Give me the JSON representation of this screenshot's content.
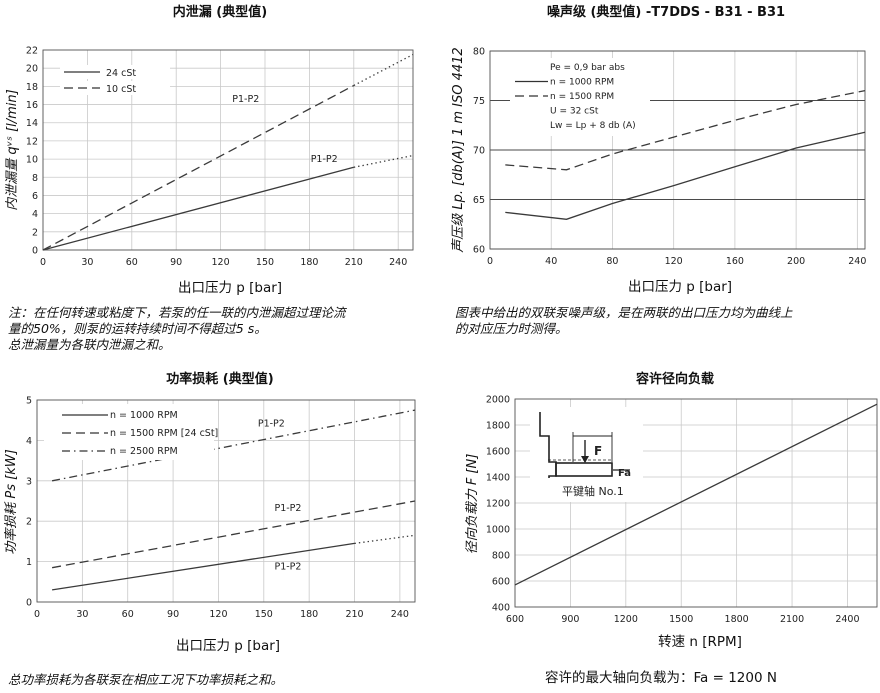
{
  "chart_data": [
    {
      "type": "line",
      "title": "内泄漏 (典型值)",
      "xlabel": "出口压力 p [bar]",
      "ylabel": "内泄漏量 qᵛˢ [l/min]",
      "xlim": [
        0,
        250
      ],
      "ylim": [
        0,
        22
      ],
      "xticks": [
        0,
        30,
        60,
        90,
        120,
        150,
        180,
        210,
        240
      ],
      "yticks": [
        0,
        2,
        4,
        6,
        8,
        10,
        12,
        14,
        16,
        18,
        20,
        22
      ],
      "grid": true,
      "legend": [
        {
          "label": "24 cSt",
          "style": "solid"
        },
        {
          "label": "10 cSt",
          "style": "dashed"
        }
      ],
      "series": [
        {
          "name": "24 cSt",
          "style": "solid",
          "x": [
            0,
            210
          ],
          "y": [
            0,
            9.1
          ]
        },
        {
          "name": "24 cSt",
          "style": "dotted",
          "x": [
            210,
            250
          ],
          "y": [
            9.1,
            10.4
          ]
        },
        {
          "name": "10 cSt",
          "style": "dashed",
          "x": [
            0,
            210
          ],
          "y": [
            0,
            18.1
          ]
        },
        {
          "name": "10 cSt",
          "style": "dotted",
          "x": [
            210,
            250
          ],
          "y": [
            18.1,
            21.5
          ]
        }
      ],
      "annotations": [
        {
          "text": "P1-P2",
          "x": 137,
          "y": 16.3
        },
        {
          "text": "P1-P2",
          "x": 190,
          "y": 9.7
        }
      ],
      "note": [
        "注：在任何转速或粘度下，若泵的任一联的内泄漏超过理论流",
        "量的50%，则泵的运转持续时间不得超过5 s。",
        "总泄漏量为各联内泄漏之和。"
      ]
    },
    {
      "type": "line",
      "title": "噪声级 (典型值) -T7DDS - B31 - B31",
      "xlabel": "出口压力 p [bar]",
      "ylabel": "声压级 Lp. [db(A)] 1 m ISO 4412",
      "xlim": [
        0,
        245
      ],
      "ylim": [
        60,
        80
      ],
      "xticks": [
        0,
        40,
        80,
        120,
        160,
        200,
        240
      ],
      "yticks": [
        60,
        65,
        70,
        75,
        80
      ],
      "grid": true,
      "legend": [
        {
          "label": "Pe  = 0,9 bar abs",
          "style": "none"
        },
        {
          "label": "n   = 1000 RPM",
          "style": "solid"
        },
        {
          "label": "n   = 1500 RPM",
          "style": "dashed"
        },
        {
          "label": "U   = 32 cSt",
          "style": "none"
        },
        {
          "label": "Lw = Lp + 8 db (A)",
          "style": "none"
        }
      ],
      "series": [
        {
          "name": "n = 1000 RPM",
          "style": "solid",
          "x": [
            10,
            50,
            80,
            120,
            160,
            200,
            245
          ],
          "y": [
            63.7,
            63.0,
            64.6,
            66.4,
            68.3,
            70.2,
            71.8
          ]
        },
        {
          "name": "n = 1500 RPM",
          "style": "dashed",
          "x": [
            10,
            50,
            80,
            120,
            160,
            200,
            245
          ],
          "y": [
            68.5,
            68.0,
            69.6,
            71.3,
            73.0,
            74.6,
            76.0
          ]
        }
      ],
      "note": [
        "图表中给出的双联泵噪声级，是在两联的出口压力均为曲线上",
        "的对应压力时测得。"
      ]
    },
    {
      "type": "line",
      "title": "功率损耗 (典型值)",
      "xlabel": "出口压力 p [bar]",
      "ylabel": "功率损耗 Ps [kW]",
      "xlim": [
        0,
        250
      ],
      "ylim": [
        0,
        5
      ],
      "xticks": [
        0,
        30,
        60,
        90,
        120,
        150,
        180,
        210,
        240
      ],
      "yticks": [
        0,
        1,
        2,
        3,
        4,
        5
      ],
      "grid": true,
      "legend": [
        {
          "label": "n = 1000 RPM",
          "style": "solid"
        },
        {
          "label": "n = 1500 RPM [24 cSt]",
          "style": "dashed"
        },
        {
          "label": "n = 2500 RPM",
          "style": "dashdot"
        }
      ],
      "series": [
        {
          "name": "n = 1000 RPM",
          "style": "solid",
          "x": [
            10,
            210
          ],
          "y": [
            0.3,
            1.45
          ]
        },
        {
          "name": "n = 1000 RPM",
          "style": "dotted",
          "x": [
            210,
            250
          ],
          "y": [
            1.45,
            1.65
          ]
        },
        {
          "name": "n = 1500 RPM [24 cSt]",
          "style": "dashed",
          "x": [
            10,
            250
          ],
          "y": [
            0.85,
            2.5
          ]
        },
        {
          "name": "n = 2500 RPM",
          "style": "dashdot",
          "x": [
            10,
            250
          ],
          "y": [
            3.0,
            4.75
          ]
        }
      ],
      "annotations": [
        {
          "text": "P1-P2",
          "x": 155,
          "y": 4.35
        },
        {
          "text": "P1-P2",
          "x": 166,
          "y": 2.25
        },
        {
          "text": "P1-P2",
          "x": 166,
          "y": 0.8
        }
      ],
      "note": [
        "总功率损耗为各联泵在相应工况下功率损耗之和。"
      ]
    },
    {
      "type": "line",
      "title": "容许径向负载",
      "xlabel": "转速 n [RPM]",
      "ylabel": "径向负载力 F [N]",
      "xlim": [
        600,
        2560
      ],
      "ylim": [
        400,
        2000
      ],
      "xticks": [
        600,
        900,
        1200,
        1500,
        1800,
        2100,
        2400
      ],
      "yticks": [
        400,
        600,
        800,
        1000,
        1200,
        1400,
        1600,
        1800,
        2000
      ],
      "grid": true,
      "series": [
        {
          "name": "",
          "style": "solid",
          "x": [
            600,
            2560
          ],
          "y": [
            570,
            1960
          ]
        }
      ],
      "inset": {
        "label_force": "F",
        "label_axial": "Fa",
        "caption": "平键轴 No.1"
      },
      "note": [
        "容许的最大轴向负载为：Fa = 1200 N"
      ]
    }
  ]
}
